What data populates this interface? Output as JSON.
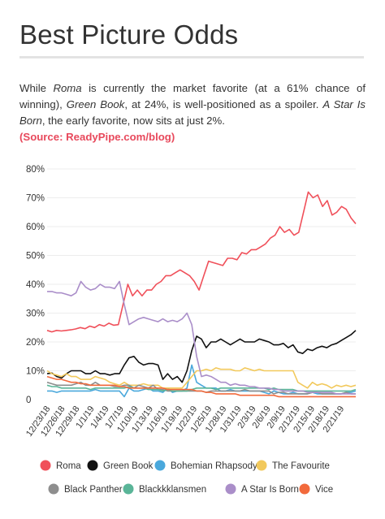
{
  "header": {
    "title": "Best Picture Odds",
    "desc_1": "While ",
    "desc_roma": "Roma",
    "desc_2": " is currently the market favorite (at a 61% chance of winning), ",
    "desc_gb": "Green Book",
    "desc_3": ", at 24%, is well-positioned as a spoiler. ",
    "desc_star": "A Star Is Born",
    "desc_4": ", the early favorite, now sits at just 2%.",
    "source": "(Source: ReadyPipe.com/blog)"
  },
  "chart_data": {
    "type": "line",
    "ylim": [
      0,
      80
    ],
    "ytick_labels": [
      "0",
      "10%",
      "20%",
      "30%",
      "40%",
      "50%",
      "60%",
      "70%",
      "80%"
    ],
    "xtick_labels": [
      "12/23/18",
      "12/26/18",
      "12/29/18",
      "1/1/19",
      "1/4/19",
      "1/7/19",
      "1/10/19",
      "1/13/19",
      "1/16/19",
      "1/19/19",
      "1/22/19",
      "1/25/19",
      "1/28/19",
      "1/31/19",
      "2/3/19",
      "2/6/19",
      "2/9/19",
      "2/12/19",
      "2/15/19",
      "2/18/19",
      "2/21/19"
    ],
    "x_start": "12/23/18",
    "x_end": "2/24/19",
    "series": [
      {
        "name": "Roma",
        "color": "#f0505a",
        "values": [
          24,
          23.5,
          24,
          23.8,
          24,
          24.2,
          24.5,
          25,
          24.6,
          25.5,
          25,
          26,
          25.5,
          26.5,
          25.8,
          26,
          33,
          40,
          36,
          38,
          36,
          38,
          38,
          40,
          41,
          43,
          43,
          44,
          45,
          44,
          43,
          41,
          38,
          43,
          48,
          47.5,
          47,
          46.5,
          49,
          49,
          48.5,
          51,
          50.5,
          52,
          52,
          53,
          54,
          56,
          57,
          60,
          58,
          59,
          57,
          58,
          65,
          72,
          70,
          71,
          67,
          69,
          64,
          65,
          67,
          66,
          63,
          61
        ]
      },
      {
        "name": "Green Book",
        "color": "#111111",
        "values": [
          9,
          9.2,
          8,
          7.5,
          9,
          10,
          10,
          10,
          9,
          9,
          10,
          9,
          9,
          8.5,
          9,
          9,
          12,
          14.5,
          15,
          13,
          12,
          12.5,
          12.5,
          12,
          7,
          9,
          7,
          8,
          6,
          10,
          17,
          22,
          21,
          18,
          20,
          20,
          21,
          20,
          19,
          20,
          21,
          20,
          20,
          20,
          21,
          20.5,
          20,
          19,
          19,
          19.5,
          18,
          19,
          16.5,
          16,
          17.5,
          17,
          18,
          18.5,
          18,
          19,
          19.5,
          20.5,
          21.5,
          22.5,
          24
        ]
      },
      {
        "name": "Bohemian Rhapsody",
        "color": "#4aa8dc",
        "values": [
          3,
          3,
          2.5,
          3,
          3,
          3,
          3,
          3,
          3,
          3,
          3.5,
          3,
          3,
          3,
          3,
          3,
          1,
          4,
          3,
          3,
          3.5,
          4,
          3,
          3,
          2.5,
          4,
          2.5,
          3,
          3,
          4,
          12,
          6,
          5,
          4,
          4,
          4,
          3,
          3,
          3.5,
          3,
          3,
          3,
          3,
          3,
          3,
          2.5,
          2,
          3,
          2.5,
          2,
          2,
          2.5,
          2,
          2,
          2,
          2.5,
          2,
          2,
          2,
          2,
          2,
          2,
          2.5,
          2.5,
          3
        ]
      },
      {
        "name": "The Favourite",
        "color": "#f2c95c",
        "values": [
          10,
          9,
          8.5,
          8,
          9,
          8,
          8,
          7,
          7,
          7,
          8,
          7.5,
          7,
          6,
          5.5,
          5,
          6,
          5,
          5,
          5,
          5.5,
          5,
          5,
          5,
          4,
          4,
          4,
          4,
          4,
          6,
          8,
          10,
          10,
          10.5,
          10,
          11,
          10.5,
          10.5,
          10.5,
          10,
          10,
          11,
          10.5,
          10,
          10.5,
          10,
          10,
          10,
          10,
          10,
          10,
          10,
          6,
          5,
          4,
          6,
          5,
          5.5,
          5,
          4,
          5,
          4.5,
          5,
          4.5,
          5
        ]
      },
      {
        "name": "Black Panther",
        "color": "#8e8e8e",
        "values": [
          6,
          5.5,
          5,
          5,
          5,
          5,
          5.5,
          6,
          5,
          5,
          6,
          5,
          5,
          5,
          4.5,
          4.5,
          5,
          5,
          4,
          5,
          4.5,
          4,
          5,
          3.5,
          3.5,
          3,
          3,
          3,
          3,
          3,
          3,
          3,
          3,
          2.5,
          3,
          3,
          3,
          3,
          3,
          3,
          3,
          3.5,
          3,
          3,
          3,
          3,
          3,
          2,
          2.5,
          2.5,
          2,
          2,
          2,
          2,
          2,
          2.5,
          2.5,
          2,
          2,
          2,
          2,
          2,
          2.5,
          2,
          2
        ]
      },
      {
        "name": "Blackkklansmen",
        "color": "#5ab598",
        "values": [
          5,
          4.5,
          4.5,
          4,
          4,
          4,
          4,
          4,
          4,
          3.5,
          4,
          4,
          4,
          4,
          4,
          4,
          4,
          4.5,
          4,
          4,
          4,
          3.5,
          3.5,
          3.5,
          3,
          3.5,
          3,
          3,
          3,
          3,
          3.5,
          4,
          4,
          4,
          4,
          3.5,
          4,
          4,
          4,
          4,
          4,
          4,
          4,
          4,
          4,
          4,
          3.5,
          4,
          3.5,
          3.5,
          3.5,
          3.5,
          3,
          3,
          3,
          3,
          3,
          3,
          3,
          3,
          3,
          3,
          3,
          3,
          3.5
        ]
      },
      {
        "name": "A Star Is Born",
        "color": "#aa8ec9",
        "values": [
          37.5,
          37.5,
          37,
          37,
          36.5,
          36,
          37,
          41,
          39,
          38,
          38.5,
          40,
          39,
          39,
          38.5,
          41,
          33,
          26,
          27,
          28,
          28.5,
          28,
          27.5,
          27,
          28,
          27,
          27.5,
          27,
          28,
          30,
          26,
          15,
          8,
          8.5,
          8,
          7,
          6,
          6,
          5,
          5.5,
          5,
          5,
          4.5,
          4.5,
          4,
          4,
          4,
          3.5,
          3.5,
          3,
          3,
          3,
          3,
          3,
          2.5,
          2.5,
          2.5,
          2.5,
          2.5,
          2.5,
          2,
          2,
          2,
          2,
          2
        ]
      },
      {
        "name": "Vice",
        "color": "#f26a3c",
        "values": [
          8,
          7.5,
          7,
          7,
          6.5,
          6,
          6,
          5.5,
          5.5,
          5,
          5,
          5,
          5,
          5,
          5,
          4.5,
          4.5,
          4,
          4,
          4,
          4,
          4,
          4,
          4,
          4,
          3.5,
          3.5,
          3.5,
          3.5,
          3.5,
          3.5,
          3,
          3,
          2.5,
          2.5,
          2,
          2,
          2,
          2,
          2,
          1.5,
          1.5,
          1.5,
          1.5,
          1.5,
          1.5,
          1.5,
          1.5,
          1,
          1,
          1,
          1,
          1,
          1,
          1,
          1,
          1,
          1,
          1,
          1,
          1,
          1,
          1,
          1,
          1
        ]
      }
    ]
  }
}
